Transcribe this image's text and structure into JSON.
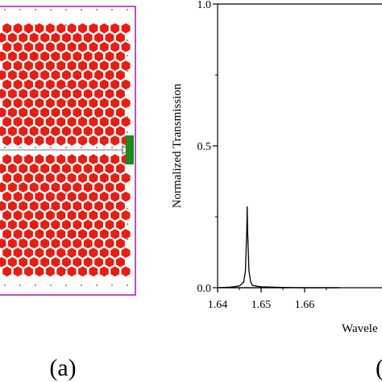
{
  "panel_a": {
    "label": "(a)",
    "border_color": "#b455c8",
    "hole_color": "#e61e14",
    "waveguide_line_color": "#7a7a7a",
    "detector_color": "#1a8a1a",
    "dot_color": "#555555"
  },
  "panel_b": {
    "label": "(",
    "xlabel": "Wavele",
    "ylabel": "Normalized Transmission",
    "series_colors": [
      "#000000",
      "#cc0000"
    ]
  },
  "chart_data": {
    "type": "line",
    "title": "",
    "xlabel": "Wavele",
    "ylabel": "Normalized Transmission",
    "xlim": [
      1.64,
      1.668
    ],
    "ylim": [
      0.0,
      1.0
    ],
    "xticks": [
      "1.64",
      "1.65",
      "1.66"
    ],
    "yticks": [
      "0.0",
      "0.5",
      "1.0"
    ],
    "grid": false,
    "legend": "none",
    "series": [
      {
        "color": "#000000",
        "x": [
          1.64,
          1.643,
          1.645,
          1.646,
          1.6464,
          1.6467,
          1.6468,
          1.6469,
          1.6472,
          1.6476,
          1.648,
          1.65,
          1.655,
          1.66,
          1.665,
          1.668
        ],
        "y": [
          0.0,
          0.002,
          0.006,
          0.02,
          0.06,
          0.2,
          0.285,
          0.2,
          0.06,
          0.02,
          0.008,
          0.003,
          0.001,
          0.0,
          0.0,
          0.0
        ]
      },
      {
        "color": "#cc0000",
        "x": [
          1.64,
          1.65,
          1.66,
          1.668
        ],
        "y": [
          0.0,
          0.0,
          0.0,
          0.0
        ]
      }
    ]
  }
}
